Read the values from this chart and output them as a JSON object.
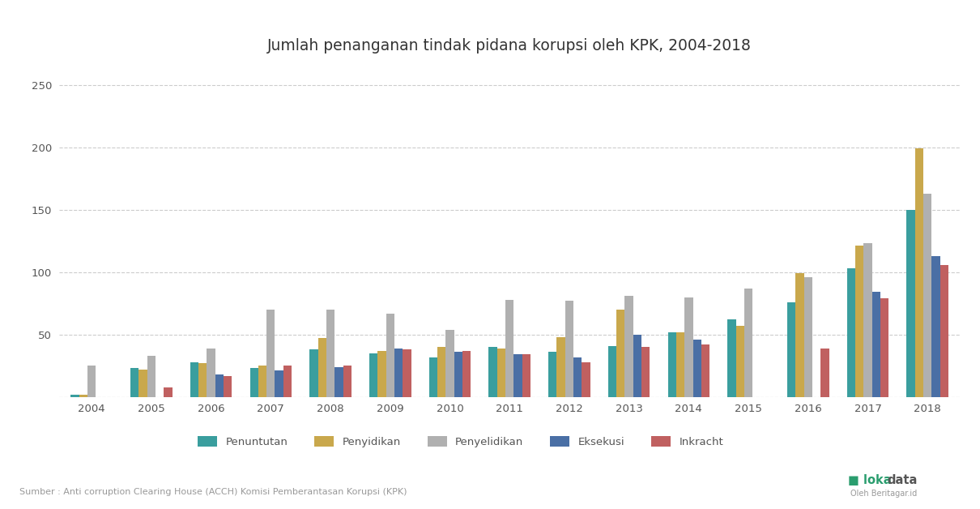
{
  "title": "Jumlah penanganan tindak pidana korupsi oleh KPK, 2004-2018",
  "years": [
    2004,
    2005,
    2006,
    2007,
    2008,
    2009,
    2010,
    2011,
    2012,
    2013,
    2014,
    2015,
    2016,
    2017,
    2018
  ],
  "series": {
    "Penuntutan": [
      2,
      23,
      28,
      23,
      38,
      35,
      32,
      40,
      36,
      41,
      52,
      62,
      76,
      103,
      150
    ],
    "Penyidikan": [
      2,
      22,
      27,
      25,
      47,
      37,
      40,
      39,
      48,
      70,
      52,
      57,
      99,
      121,
      199
    ],
    "Penyelidikan": [
      25,
      33,
      39,
      70,
      70,
      67,
      54,
      78,
      77,
      81,
      80,
      87,
      96,
      123,
      163
    ],
    "Eksekusi": [
      0,
      0,
      18,
      21,
      24,
      39,
      36,
      34,
      32,
      50,
      46,
      0,
      0,
      84,
      113
    ],
    "Inkracht": [
      0,
      8,
      17,
      25,
      25,
      38,
      37,
      34,
      28,
      40,
      42,
      0,
      39,
      79,
      106
    ]
  },
  "colors": {
    "Penuntutan": "#3a9e9e",
    "Penyidikan": "#c9a84c",
    "Penyelidikan": "#b0b0b0",
    "Eksekusi": "#4a6fa5",
    "Inkracht": "#c06060"
  },
  "ylim": [
    0,
    265
  ],
  "yticks": [
    0,
    50,
    100,
    150,
    200,
    250
  ],
  "source_text": "Sumber : Anti corruption Clearing House (ACCH) Komisi Pemberantasan Korupsi (KPK)",
  "background_color": "#ffffff",
  "grid_color": "#cccccc",
  "bar_width": 0.14
}
